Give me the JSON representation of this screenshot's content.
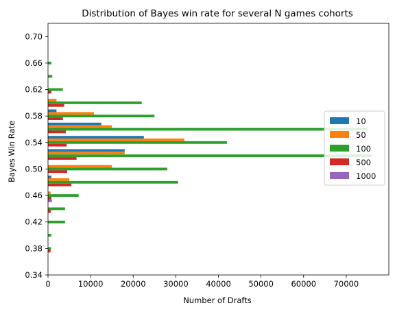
{
  "chart_data": {
    "type": "bar",
    "orientation": "horizontal",
    "title": "Distribution of Bayes win rate for several N games cohorts",
    "xlabel": "Number of Drafts",
    "ylabel": "Bayes Win Rate",
    "xlim": [
      0,
      80000
    ],
    "ylim": [
      0.34,
      0.72
    ],
    "xticks": [
      0,
      10000,
      20000,
      30000,
      40000,
      50000,
      60000,
      70000
    ],
    "xtick_labels": [
      "0",
      "10000",
      "20000",
      "30000",
      "40000",
      "50000",
      "60000",
      "70000"
    ],
    "yticks": [
      0.34,
      0.38,
      0.42,
      0.46,
      0.5,
      0.54,
      0.58,
      0.62,
      0.66,
      0.7
    ],
    "ytick_labels": [
      "0.34",
      "0.38",
      "0.42",
      "0.46",
      "0.50",
      "0.54",
      "0.58",
      "0.62",
      "0.66",
      "0.70"
    ],
    "categories": [
      0.36,
      0.38,
      0.4,
      0.42,
      0.44,
      0.46,
      0.48,
      0.5,
      0.52,
      0.54,
      0.56,
      0.58,
      0.6,
      0.62,
      0.64,
      0.66,
      0.68,
      0.7
    ],
    "grid": false,
    "legend_position": "right",
    "series": [
      {
        "name": "10",
        "color": "#1f77b4",
        "values": [
          0,
          0,
          0,
          0,
          0,
          0,
          800,
          0,
          18000,
          22500,
          12500,
          2000,
          0,
          0,
          0,
          0,
          0,
          0
        ]
      },
      {
        "name": "50",
        "color": "#ff7f0e",
        "values": [
          0,
          0,
          0,
          0,
          0,
          600,
          5000,
          15000,
          18000,
          32000,
          15000,
          10800,
          2000,
          0,
          0,
          0,
          0,
          0
        ]
      },
      {
        "name": "100",
        "color": "#2ca02c",
        "values": [
          0,
          700,
          800,
          4000,
          4000,
          7200,
          30500,
          28000,
          76000,
          42000,
          75000,
          25000,
          22000,
          3500,
          1000,
          800,
          0,
          0
        ]
      },
      {
        "name": "500",
        "color": "#d62728",
        "values": [
          0,
          600,
          0,
          0,
          700,
          800,
          5500,
          4500,
          6700,
          4400,
          4200,
          3500,
          3800,
          800,
          0,
          0,
          0,
          0
        ]
      },
      {
        "name": "1000",
        "color": "#9467bd",
        "values": [
          0,
          0,
          0,
          0,
          0,
          900,
          0,
          0,
          0,
          0,
          0,
          0,
          0,
          0,
          0,
          0,
          0,
          0
        ]
      }
    ]
  }
}
